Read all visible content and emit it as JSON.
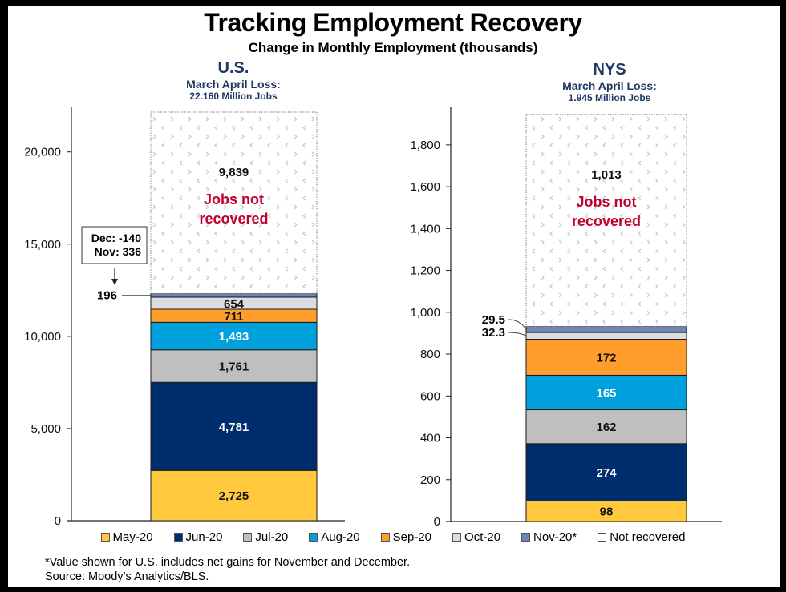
{
  "title": "Tracking Employment Recovery",
  "subtitle": "Change in Monthly Employment (thousands)",
  "colors": {
    "May-20": "#ffc83d",
    "Jun-20": "#002d6e",
    "Jul-20": "#bfbfbf",
    "Aug-20": "#00a0dc",
    "Sep-20": "#ff9e2c",
    "Oct-20": "#dcdde0",
    "Nov-20*": "#6a85b6",
    "Not recovered": "#ffffff",
    "not_recovered_text": "#c00030",
    "header_text": "#1f3864"
  },
  "chart_data": [
    {
      "type": "bar",
      "stacked": true,
      "region": "U.S.",
      "loss_label": "March April Loss:",
      "loss_value": "22.160 Million Jobs",
      "ylim": [
        0,
        22160
      ],
      "yticks": [
        0,
        5000,
        10000,
        15000,
        20000
      ],
      "ytick_labels": [
        "0",
        "5,000",
        "10,000",
        "15,000",
        "20,000"
      ],
      "segments": [
        {
          "name": "May-20",
          "value": 2725,
          "label": "2,725",
          "label_color": "#111111"
        },
        {
          "name": "Jun-20",
          "value": 4781,
          "label": "4,781",
          "label_color": "#ffffff"
        },
        {
          "name": "Jul-20",
          "value": 1761,
          "label": "1,761",
          "label_color": "#111111"
        },
        {
          "name": "Aug-20",
          "value": 1493,
          "label": "1,493",
          "label_color": "#ffffff"
        },
        {
          "name": "Sep-20",
          "value": 711,
          "label": "711",
          "label_color": "#111111"
        },
        {
          "name": "Oct-20",
          "value": 654,
          "label": "654",
          "label_color": "#111111"
        },
        {
          "name": "Nov-20*",
          "value": 196,
          "label": "196",
          "label_color": "#111111"
        },
        {
          "name": "Not recovered",
          "value": 9839,
          "label": "9,839",
          "label_color": "#111111"
        }
      ],
      "not_recovered_text": [
        "Jobs not",
        "recovered"
      ],
      "annotation": {
        "lines": [
          "Dec: -140",
          "Nov:  336"
        ],
        "points_to": "196"
      }
    },
    {
      "type": "bar",
      "stacked": true,
      "region": "NYS",
      "loss_label": "March April Loss:",
      "loss_value": "1.945 Million Jobs",
      "ylim": [
        0,
        1945
      ],
      "yticks": [
        0,
        200,
        400,
        600,
        800,
        1000,
        1200,
        1400,
        1600,
        1800
      ],
      "ytick_labels": [
        "0",
        "200",
        "400",
        "600",
        "800",
        "1,000",
        "1,200",
        "1,400",
        "1,600",
        "1,800"
      ],
      "segments": [
        {
          "name": "May-20",
          "value": 98,
          "label": "98",
          "label_color": "#111111"
        },
        {
          "name": "Jun-20",
          "value": 274,
          "label": "274",
          "label_color": "#ffffff"
        },
        {
          "name": "Jul-20",
          "value": 162,
          "label": "162",
          "label_color": "#111111"
        },
        {
          "name": "Aug-20",
          "value": 165,
          "label": "165",
          "label_color": "#ffffff"
        },
        {
          "name": "Sep-20",
          "value": 172,
          "label": "172",
          "label_color": "#111111"
        },
        {
          "name": "Oct-20",
          "value": 32.3,
          "label": "32.3",
          "label_color": "#111111"
        },
        {
          "name": "Nov-20*",
          "value": 29.5,
          "label": "29.5",
          "label_color": "#111111"
        },
        {
          "name": "Not recovered",
          "value": 1013,
          "label": "1,013",
          "label_color": "#111111"
        }
      ],
      "not_recovered_text": [
        "Jobs not",
        "recovered"
      ]
    }
  ],
  "legend": [
    "May-20",
    "Jun-20",
    "Jul-20",
    "Aug-20",
    "Sep-20",
    "Oct-20",
    "Nov-20*",
    "Not recovered"
  ],
  "footnote": "*Value shown for U.S. includes net gains for November and December.",
  "source": "Source: Moody’s Analytics/BLS."
}
